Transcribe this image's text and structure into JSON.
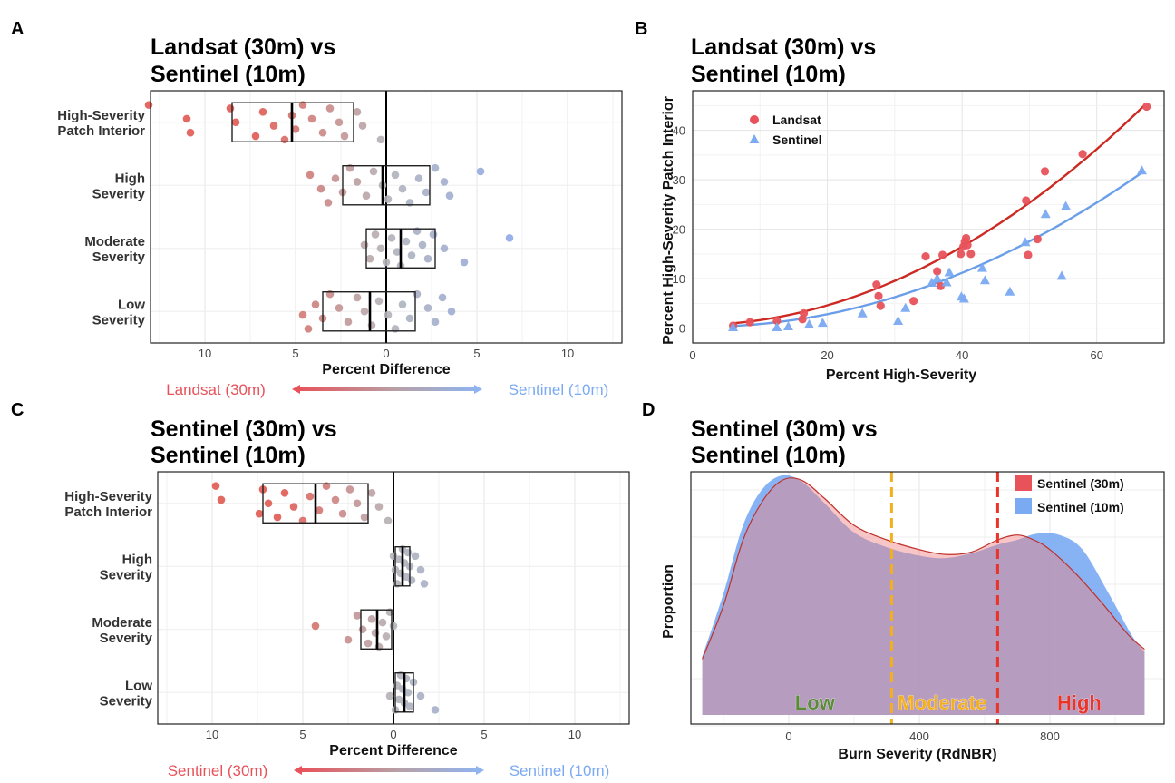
{
  "panels": {
    "A": {
      "letter": "A",
      "title1": "Landsat (30m) vs",
      "title2": "Sentinel (10m)"
    },
    "B": {
      "letter": "B",
      "title1": "Landsat (30m) vs",
      "title2": "Sentinel (10m)"
    },
    "C": {
      "letter": "C",
      "title1": "Sentinel (30m) vs",
      "title2": "Sentinel (10m)"
    },
    "D": {
      "letter": "D",
      "title1": "Sentinel (30m) vs",
      "title2": "Sentinel (10m)"
    }
  },
  "colors": {
    "red": "#e8525a",
    "blue": "#7aaaf2",
    "purple": "#9a7bbc",
    "orange": "#f2b020",
    "green": "#5a8a3a",
    "brightred": "#e8342a"
  },
  "chart_data": [
    {
      "id": "A",
      "type": "scatter",
      "subtype": "jitter-boxplot",
      "title": "Landsat (30m) vs Sentinel (10m)",
      "xlabel": "Percent Difference",
      "x_reversed_left_labels": true,
      "x_ticks": [
        "10",
        "5",
        "0",
        "5",
        "10"
      ],
      "x_tick_values": [
        -10,
        -5,
        0,
        5,
        10
      ],
      "xlim": [
        -13,
        13
      ],
      "left_label": "Landsat (30m)",
      "right_label": "Sentinel (10m)",
      "categories": [
        "High-Severity Patch Interior",
        "High Severity",
        "Moderate Severity",
        "Low Severity"
      ],
      "category_lines": [
        [
          "High-Severity",
          "Patch Interior"
        ],
        [
          "High",
          "Severity"
        ],
        [
          "Moderate",
          "Severity"
        ],
        [
          "Low",
          "Severity"
        ]
      ],
      "boxes": [
        {
          "q1": -8.5,
          "median": -5.2,
          "q3": -1.8
        },
        {
          "q1": -2.4,
          "median": -0.2,
          "q3": 2.4
        },
        {
          "q1": -1.1,
          "median": 0.8,
          "q3": 2.7
        },
        {
          "q1": -3.5,
          "median": -0.9,
          "q3": 1.6
        }
      ],
      "points": [
        [
          -13.1,
          -11.0,
          -10.8,
          -8.6,
          -8.3,
          -7.2,
          -6.8,
          -6.2,
          -5.6,
          -5.2,
          -5.0,
          -4.6,
          -4.1,
          -3.5,
          -3.1,
          -2.6,
          -2.3,
          -1.6,
          -1.3,
          -0.3
        ],
        [
          -4.2,
          -3.6,
          -3.2,
          -2.8,
          -2.4,
          -2.0,
          -1.6,
          -1.1,
          -0.7,
          -0.2,
          0.1,
          0.5,
          0.9,
          1.3,
          1.8,
          2.2,
          2.7,
          3.2,
          3.5,
          5.2
        ],
        [
          -1.2,
          -0.9,
          -0.6,
          -0.3,
          0.0,
          0.3,
          0.6,
          0.8,
          1.1,
          1.4,
          1.7,
          2.0,
          2.3,
          2.6,
          3.2,
          4.3,
          6.8
        ],
        [
          -4.6,
          -4.3,
          -3.9,
          -3.5,
          -3.1,
          -2.6,
          -2.1,
          -1.6,
          -1.2,
          -0.8,
          -0.4,
          0.1,
          0.5,
          0.9,
          1.3,
          1.7,
          2.3,
          2.7,
          3.1,
          3.6
        ]
      ]
    },
    {
      "id": "B",
      "type": "scatter",
      "title": "Landsat (30m) vs Sentinel (10m)",
      "xlabel": "Percent High-Severity",
      "ylabel": "Percent High-Severity Patch Interior",
      "xlim": [
        0,
        70
      ],
      "ylim": [
        -3,
        48
      ],
      "x_ticks": [
        "0",
        "20",
        "40",
        "60"
      ],
      "y_ticks": [
        "0",
        "10",
        "20",
        "30",
        "40"
      ],
      "legend": [
        "Landsat",
        "Sentinel"
      ],
      "series": [
        {
          "name": "Landsat",
          "marker": "circle",
          "color": "#e8525a",
          "x": [
            6,
            8.5,
            12.5,
            16.3,
            16.5,
            27.3,
            27.6,
            27.9,
            32.8,
            34.6,
            36.3,
            36.8,
            37.1,
            39.8,
            40.2,
            40.4,
            40.6,
            40.8,
            41.3,
            49.5,
            49.8,
            51.2,
            52.3,
            57.9,
            67.4
          ],
          "y": [
            0.5,
            1.2,
            1.5,
            1.8,
            3.0,
            8.8,
            6.5,
            4.5,
            5.5,
            14.5,
            11.5,
            8.5,
            14.8,
            15.0,
            16.5,
            17.5,
            18.2,
            16.8,
            15.0,
            25.8,
            14.8,
            18.0,
            31.7,
            35.2,
            44.8
          ]
        },
        {
          "name": "Sentinel",
          "marker": "triangle",
          "color": "#7aaaf2",
          "x": [
            6,
            12.5,
            14.2,
            17.3,
            19.3,
            25.2,
            30.5,
            31.6,
            35.5,
            36.3,
            37.7,
            38.1,
            39.9,
            40.3,
            43.0,
            43.4,
            47.1,
            49.4,
            52.4,
            54.8,
            55.4,
            66.7
          ],
          "y": [
            0.2,
            0.2,
            0.4,
            0.8,
            1.1,
            3.0,
            1.5,
            4.1,
            9.2,
            10.1,
            9.3,
            11.3,
            6.4,
            6.0,
            12.2,
            9.7,
            7.4,
            17.4,
            23.1,
            10.6,
            24.7,
            31.9
          ]
        }
      ],
      "fits": [
        {
          "name": "Landsat",
          "color": "#cc2a22",
          "coef": [
            0.6,
            0.004,
            0.00982
          ],
          "xrange": [
            6,
            67
          ]
        },
        {
          "name": "Sentinel",
          "color": "#6a9ee8",
          "coef": [
            0.3,
            -0.02,
            0.0073
          ],
          "xrange": [
            6,
            67
          ]
        }
      ]
    },
    {
      "id": "C",
      "type": "scatter",
      "subtype": "jitter-boxplot",
      "title": "Sentinel (30m) vs Sentinel (10m)",
      "xlabel": "Percent Difference",
      "x_ticks": [
        "10",
        "5",
        "0",
        "5",
        "10"
      ],
      "x_tick_values": [
        -10,
        -5,
        0,
        5,
        10
      ],
      "xlim": [
        -13,
        13
      ],
      "left_label": "Sentinel (30m)",
      "right_label": "Sentinel (10m)",
      "categories": [
        "High-Severity Patch Interior",
        "High Severity",
        "Moderate Severity",
        "Low Severity"
      ],
      "category_lines": [
        [
          "High-Severity",
          "Patch Interior"
        ],
        [
          "High",
          "Severity"
        ],
        [
          "Moderate",
          "Severity"
        ],
        [
          "Low",
          "Severity"
        ]
      ],
      "boxes": [
        {
          "q1": -7.2,
          "median": -4.3,
          "q3": -1.4
        },
        {
          "q1": 0.1,
          "median": 0.5,
          "q3": 0.9
        },
        {
          "q1": -1.8,
          "median": -0.9,
          "q3": -0.1
        },
        {
          "q1": 0.1,
          "median": 0.6,
          "q3": 1.1
        }
      ],
      "points": [
        [
          -9.8,
          -9.5,
          -7.4,
          -7.2,
          -6.9,
          -6.4,
          -6.0,
          -5.5,
          -5.0,
          -4.6,
          -4.1,
          -3.7,
          -3.2,
          -2.8,
          -2.4,
          -2.0,
          -1.6,
          -1.2,
          -0.8,
          -0.3
        ],
        [
          0.0,
          0.1,
          0.2,
          0.3,
          0.4,
          0.5,
          0.6,
          0.7,
          0.8,
          0.9,
          1.0,
          1.2,
          1.5,
          1.7
        ],
        [
          -4.3,
          -2.5,
          -2.0,
          -1.7,
          -1.4,
          -1.2,
          -1.0,
          -0.8,
          -0.6,
          -0.4,
          -0.2,
          0.0
        ],
        [
          -0.2,
          0.1,
          0.2,
          0.3,
          0.4,
          0.5,
          0.6,
          0.7,
          0.8,
          0.9,
          1.1,
          1.5,
          2.3
        ]
      ]
    },
    {
      "id": "D",
      "type": "area",
      "subtype": "density",
      "title": "Sentinel (30m) vs Sentinel (10m)",
      "xlabel": "Burn Severity (RdNBR)",
      "ylabel": "Proportion",
      "xlim": [
        -300,
        1150
      ],
      "x_ticks": [
        "0",
        "400",
        "800"
      ],
      "x_tick_values": [
        0,
        400,
        800
      ],
      "legend": [
        "Sentinel (30m)",
        "Sentinel (10m)"
      ],
      "thresholds": [
        {
          "x": 315,
          "color": "#f2b020"
        },
        {
          "x": 640,
          "color": "#e8342a"
        }
      ],
      "severity_labels": [
        {
          "text": "Low",
          "x": 80,
          "color": "#5a8a3a"
        },
        {
          "text": "Moderate",
          "x": 470,
          "color": "#f2b020"
        },
        {
          "text": "High",
          "x": 890,
          "color": "#e8342a"
        }
      ],
      "series": [
        {
          "name": "Sentinel (30m)",
          "color": "#e8525a",
          "x": [
            -265,
            -200,
            -140,
            -80,
            -20,
            40,
            110,
            200,
            300,
            400,
            480,
            560,
            640,
            700,
            750,
            800,
            880,
            960,
            1040,
            1090
          ],
          "y": [
            0.23,
            0.45,
            0.72,
            0.88,
            0.965,
            0.965,
            0.89,
            0.78,
            0.72,
            0.68,
            0.66,
            0.67,
            0.72,
            0.74,
            0.72,
            0.68,
            0.58,
            0.46,
            0.33,
            0.27
          ]
        },
        {
          "name": "Sentinel (10m)",
          "color": "#7aaaf2",
          "x": [
            -265,
            -200,
            -140,
            -80,
            -20,
            40,
            110,
            200,
            300,
            400,
            480,
            560,
            640,
            700,
            760,
            830,
            900,
            980,
            1050,
            1090
          ],
          "y": [
            0.24,
            0.5,
            0.78,
            0.93,
            0.985,
            0.96,
            0.87,
            0.75,
            0.69,
            0.655,
            0.645,
            0.665,
            0.7,
            0.72,
            0.745,
            0.74,
            0.68,
            0.5,
            0.33,
            0.26
          ]
        }
      ]
    }
  ]
}
